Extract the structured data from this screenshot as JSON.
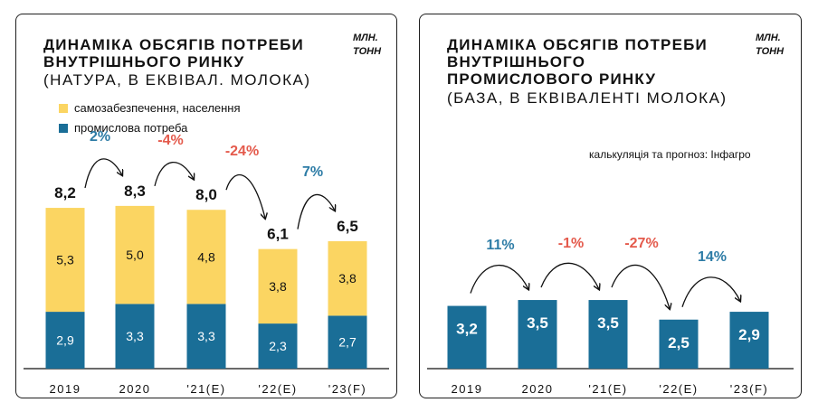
{
  "colors": {
    "navy": "#1a6e97",
    "yellow": "#fbd562",
    "red": "#e45a4c",
    "blue": "#2d7ca6",
    "black": "#111111"
  },
  "left": {
    "title_line1": "ДИНАМІКА ОБСЯГІВ ПОТРЕБИ",
    "title_line2": "ВНУТРІШНЬОГО РИНКУ",
    "subtitle": "(НАТУРА, В ЕКВІВАЛ. МОЛОКА)",
    "unit_line1": "МЛН.",
    "unit_line2": "ТОНН",
    "legend": [
      "самозабезпечення, населення",
      "промислова потреба"
    ]
  },
  "right": {
    "title_line1": "ДИНАМІКА ОБСЯГІВ ПОТРЕБИ",
    "title_line2": "ВНУТРІШНЬОГО",
    "title_line3": "ПРОМИСЛОВОГО РИНКУ",
    "subtitle": "(БАЗА, В ЕКВІВАЛЕНТІ МОЛОКА)",
    "unit_line1": "МЛН.",
    "unit_line2": "ТОНН",
    "source": "калькуляція та прогноз: Інфагро"
  },
  "chart_data": [
    {
      "type": "bar",
      "stacked": true,
      "title": "ДИНАМІКА ОБСЯГІВ ПОТРЕБИ ВНУТРІШНЬОГО РИНКУ",
      "subtitle": "(НАТУРА, В ЕКВІВАЛ. МОЛОКА)",
      "unit": "МЛН. ТОНН",
      "categories": [
        "2019",
        "2020",
        "'21(E)",
        "'22(E)",
        "'23(F)"
      ],
      "series": [
        {
          "name": "промислова потреба",
          "values": [
            2.9,
            3.3,
            3.3,
            2.3,
            2.7
          ],
          "labels": [
            "2,9",
            "3,3",
            "3,3",
            "2,3",
            "2,7"
          ]
        },
        {
          "name": "самозабезпечення, населення",
          "values": [
            5.3,
            5.0,
            4.8,
            3.8,
            3.8
          ],
          "labels": [
            "5,3",
            "5,0",
            "4,8",
            "3,8",
            "3,8"
          ]
        }
      ],
      "totals": [
        "8,2",
        "8,3",
        "8,0",
        "6,1",
        "6,5"
      ],
      "changes": [
        {
          "label": "2%",
          "sign": "up"
        },
        {
          "label": "-4%",
          "sign": "down"
        },
        {
          "label": "-24%",
          "sign": "down"
        },
        {
          "label": "7%",
          "sign": "up"
        }
      ],
      "ylim": [
        0,
        9.5
      ],
      "grid": false,
      "legend_position": "top-left"
    },
    {
      "type": "bar",
      "title": "ДИНАМІКА ОБСЯГІВ ПОТРЕБИ ВНУТРІШНЬОГО ПРОМИСЛОВОГО РИНКУ",
      "subtitle": "(БАЗА, В ЕКВІВАЛЕНТІ МОЛОКА)",
      "unit": "МЛН. ТОНН",
      "categories": [
        "2019",
        "2020",
        "'21(E)",
        "'22(E)",
        "'23(F)"
      ],
      "values": [
        3.2,
        3.5,
        3.5,
        2.5,
        2.9
      ],
      "labels": [
        "3,2",
        "3,5",
        "3,5",
        "2,5",
        "2,9"
      ],
      "changes": [
        {
          "label": "11%",
          "sign": "up"
        },
        {
          "label": "-1%",
          "sign": "down"
        },
        {
          "label": "-27%",
          "sign": "down"
        },
        {
          "label": "14%",
          "sign": "up"
        }
      ],
      "ylim": [
        0,
        9.5
      ],
      "grid": false
    }
  ]
}
